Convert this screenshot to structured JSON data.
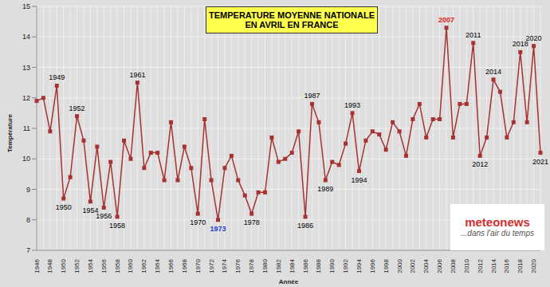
{
  "chart_data": {
    "type": "line",
    "title": "TEMPERATURE MOYENNE NATIONALE\nEN AVRIL EN FRANCE",
    "x_label": "Année",
    "y_label": "Température",
    "categories": [
      "1946",
      null,
      "1948",
      null,
      "1950",
      null,
      "1952",
      null,
      "1954",
      null,
      "1956",
      null,
      "1958",
      null,
      "1960",
      null,
      "1962",
      null,
      "1964",
      null,
      "1966",
      null,
      "1968",
      null,
      "1970",
      null,
      "1972",
      null,
      "1974",
      null,
      "1976",
      null,
      "1978",
      null,
      "1980",
      null,
      "1982",
      null,
      "1984",
      null,
      "1986",
      null,
      "1988",
      null,
      "1990",
      null,
      "1992",
      null,
      "1994",
      null,
      "1996",
      null,
      "1998",
      null,
      "2000",
      null,
      "2002",
      null,
      "2004",
      null,
      "2006",
      null,
      "2008",
      null,
      "2010",
      null,
      "2012",
      null,
      "2014",
      null,
      "2016",
      null,
      "2018",
      null,
      "2020",
      null
    ],
    "values": [
      11.9,
      12.0,
      10.9,
      12.4,
      8.7,
      9.4,
      11.4,
      10.6,
      8.6,
      10.4,
      8.4,
      9.9,
      8.1,
      10.6,
      10.0,
      12.5,
      9.7,
      10.2,
      10.2,
      9.3,
      11.2,
      9.3,
      10.4,
      9.7,
      8.2,
      11.3,
      9.3,
      8.0,
      9.7,
      10.1,
      9.3,
      8.8,
      8.2,
      8.9,
      8.9,
      10.7,
      9.9,
      10.0,
      10.2,
      10.9,
      8.1,
      11.8,
      11.2,
      9.3,
      9.9,
      9.8,
      10.5,
      11.5,
      9.6,
      10.6,
      10.9,
      10.8,
      10.3,
      11.2,
      10.9,
      10.1,
      11.3,
      11.8,
      10.7,
      11.3,
      11.3,
      14.3,
      10.7,
      11.8,
      11.8,
      13.8,
      10.1,
      10.7,
      12.6,
      12.2,
      10.7,
      11.2,
      13.5,
      11.2,
      13.7,
      10.2
    ],
    "color": "#a83232",
    "marker": "square",
    "grid": true,
    "ylim": [
      7,
      15
    ],
    "yticks": [
      7,
      8,
      9,
      10,
      11,
      12,
      13,
      14,
      15
    ],
    "annotations": [
      {
        "text": "1949",
        "position": "above",
        "color": "#000000"
      },
      {
        "text": "1950",
        "position": "below",
        "color": "#000000"
      },
      {
        "text": "1952",
        "position": "above",
        "color": "#000000"
      },
      {
        "text": "1954",
        "position": "below",
        "color": "#000000"
      },
      {
        "text": "1956",
        "position": "below",
        "color": "#000000"
      },
      {
        "text": "1958",
        "position": "below",
        "color": "#000000"
      },
      {
        "text": "1961",
        "position": "above",
        "color": "#000000"
      },
      {
        "text": "1970",
        "position": "below",
        "color": "#000000"
      },
      {
        "text": "1973",
        "position": "below",
        "color": "#2040d0"
      },
      {
        "text": "1978",
        "position": "below",
        "color": "#000000"
      },
      {
        "text": "1986",
        "position": "below",
        "color": "#000000"
      },
      {
        "text": "1987",
        "position": "above",
        "color": "#000000"
      },
      {
        "text": "1989",
        "position": "below",
        "color": "#000000"
      },
      {
        "text": "1993",
        "position": "above",
        "color": "#000000"
      },
      {
        "text": "1994",
        "position": "below",
        "color": "#000000"
      },
      {
        "text": "2007",
        "position": "above",
        "color": "#e02020"
      },
      {
        "text": "2011",
        "position": "above",
        "color": "#000000"
      },
      {
        "text": "2012",
        "position": "below",
        "color": "#000000"
      },
      {
        "text": "2014",
        "position": "above",
        "color": "#000000"
      },
      {
        "text": "2018",
        "position": "above",
        "color": "#000000"
      },
      {
        "text": "2020",
        "position": "above",
        "color": "#000000"
      },
      {
        "text": "2021",
        "position": "below",
        "color": "#000000"
      }
    ],
    "watermark": {
      "name": "meteonews",
      "tagline": "...dans l'air du temps"
    }
  }
}
